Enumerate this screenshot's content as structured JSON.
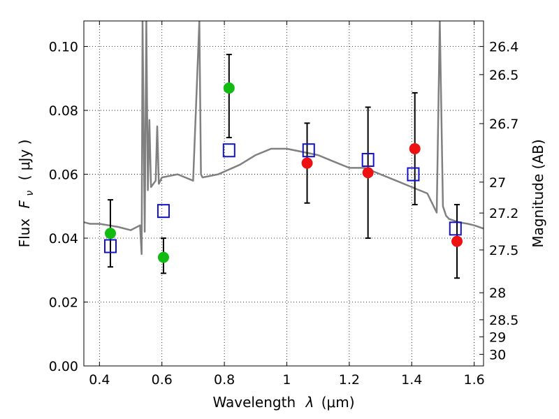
{
  "chart_data": {
    "type": "scatter",
    "title": "",
    "xlabel_text": "Wavelength",
    "xlabel_symbol": "λ",
    "xlabel_unit": "(μm)",
    "ylabel_text": "Flux",
    "ylabel_symbol": "F",
    "ylabel_subscript": "ν",
    "ylabel_unit": "( μJy )",
    "y2label": "Magnitude (AB)",
    "xlim": [
      0.35,
      1.63
    ],
    "ylim": [
      0.0,
      0.108
    ],
    "grid": true,
    "x_ticks": [
      0.4,
      0.6,
      0.8,
      1.0,
      1.2,
      1.4,
      1.6
    ],
    "x_tick_labels": [
      "0.4",
      "0.6",
      "0.8",
      "1",
      "1.2",
      "1.4",
      "1.6"
    ],
    "y_ticks": [
      0.0,
      0.02,
      0.04,
      0.06,
      0.08,
      0.1
    ],
    "y_tick_labels": [
      "0.00",
      "0.02",
      "0.04",
      "0.06",
      "0.08",
      "0.10"
    ],
    "y2_ticks": [
      26.4,
      26.5,
      26.7,
      27,
      27.2,
      27.5,
      28,
      28.5,
      29,
      30
    ],
    "y2_tick_labels": [
      "26.4",
      "26.5",
      "26.7",
      "27",
      "27.2",
      "27.5",
      "28",
      "28.5",
      "29",
      "30"
    ],
    "colors": {
      "model": "#808080",
      "green": "#11bb11",
      "red": "#ee1111",
      "square": "#1111cc",
      "errorbar": "#000000"
    },
    "series": [
      {
        "name": "model spectrum",
        "kind": "line",
        "x": [
          0.35,
          0.37,
          0.4,
          0.43,
          0.46,
          0.5,
          0.53,
          0.535,
          0.538,
          0.545,
          0.55,
          0.555,
          0.56,
          0.565,
          0.58,
          0.585,
          0.59,
          0.6,
          0.65,
          0.7,
          0.72,
          0.725,
          0.73,
          0.78,
          0.85,
          0.9,
          0.95,
          1.0,
          1.05,
          1.1,
          1.15,
          1.2,
          1.25,
          1.3,
          1.35,
          1.4,
          1.45,
          1.48,
          1.49,
          1.5,
          1.51,
          1.52,
          1.55,
          1.58,
          1.6,
          1.63
        ],
        "y": [
          0.045,
          0.0445,
          0.0445,
          0.044,
          0.0435,
          0.0425,
          0.044,
          0.035,
          0.108,
          0.042,
          0.108,
          0.055,
          0.077,
          0.056,
          0.058,
          0.075,
          0.057,
          0.059,
          0.06,
          0.058,
          0.108,
          0.06,
          0.059,
          0.06,
          0.063,
          0.066,
          0.068,
          0.068,
          0.067,
          0.066,
          0.064,
          0.062,
          0.062,
          0.06,
          0.058,
          0.056,
          0.054,
          0.048,
          0.108,
          0.05,
          0.047,
          0.046,
          0.045,
          0.0445,
          0.044,
          0.043
        ]
      },
      {
        "name": "green detections",
        "kind": "points",
        "x": [
          0.435,
          0.605,
          0.815
        ],
        "y": [
          0.0415,
          0.034,
          0.087
        ],
        "yerr_low": [
          0.0105,
          0.005,
          0.0155
        ],
        "yerr_high": [
          0.0105,
          0.006,
          0.0105
        ]
      },
      {
        "name": "red detections",
        "kind": "points",
        "x": [
          1.065,
          1.26,
          1.41,
          1.545
        ],
        "y": [
          0.0635,
          0.0605,
          0.068,
          0.039
        ],
        "yerr_low": [
          0.0125,
          0.0205,
          0.0175,
          0.0115
        ],
        "yerr_high": [
          0.0125,
          0.0205,
          0.0175,
          0.0115
        ]
      },
      {
        "name": "model photometry",
        "kind": "open-squares",
        "x": [
          0.435,
          0.605,
          0.815,
          1.07,
          1.26,
          1.405,
          1.54
        ],
        "y": [
          0.0375,
          0.0485,
          0.0675,
          0.0675,
          0.0645,
          0.06,
          0.043
        ]
      }
    ]
  }
}
